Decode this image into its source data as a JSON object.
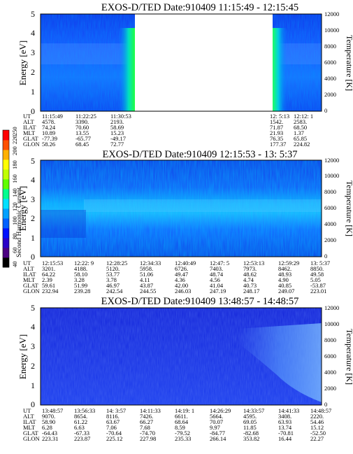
{
  "chart_data": [
    {
      "type": "heatmap",
      "title": "EXOS-D/TED   Date:910409   11:15:49 -  12:15:45",
      "ylabel": "Energy [eV]",
      "ylabel_right": "Temperature [K]",
      "ylim": [
        0,
        5
      ],
      "ylim_right": [
        0,
        12000
      ],
      "yticks": [
        "0",
        "1",
        "2",
        "3",
        "4",
        "5"
      ],
      "yticks_right": [
        "0",
        "2000",
        "4000",
        "6000",
        "8000",
        "10000",
        "12000"
      ],
      "data_gap": [
        0.25,
        0.83
      ],
      "footer_labels": [
        "UT",
        "ALT",
        "ILAT",
        "MLT",
        "GLAT",
        "GLON"
      ],
      "footer_columns": [
        [
          "11:15:49",
          "4578.",
          "74.24",
          "10.89",
          "-77.39",
          "58.26"
        ],
        [
          "11:22:25",
          "3390.",
          "70.60",
          "13.55",
          "-65.77",
          "68.45"
        ],
        [
          "11:30:53",
          "2193.",
          "58.69",
          "15.23",
          "-49.17",
          "72.77"
        ],
        [
          "12: 5:13",
          "1542.",
          "71.87",
          "21.93",
          "76.35",
          "177.37"
        ],
        [
          "12:12: 1",
          "2583.",
          "68.50",
          "1.37",
          "65.85",
          "224.82"
        ]
      ]
    },
    {
      "type": "heatmap",
      "title": "EXOS-D/TED   Date:910409   12:15:53 -  13: 5:37",
      "ylabel": "Energy [eV]",
      "ylabel_right": "Temperature [K]",
      "ylim": [
        0,
        5
      ],
      "ylim_right": [
        0,
        12000
      ],
      "yticks": [
        "0",
        "1",
        "2",
        "3",
        "4",
        "5"
      ],
      "yticks_right": [
        "0",
        "2000",
        "4000",
        "6000",
        "8000",
        "10000",
        "12000"
      ],
      "footer_labels": [
        "UT",
        "ALT",
        "ILAT",
        "MLT",
        "GLAT",
        "GLON"
      ],
      "footer_columns": [
        [
          "12:15:53",
          "3201.",
          "64.22",
          "2.39",
          "59.61",
          "232.94"
        ],
        [
          "12:22: 9",
          "4188.",
          "58.10",
          "3.28",
          "51.99",
          "239.28"
        ],
        [
          "12:28:25",
          "5120.",
          "53.77",
          "3.78",
          "46.97",
          "242.54"
        ],
        [
          "12:34:33",
          "5958.",
          "51.06",
          "4.11",
          "43.87",
          "244.55"
        ],
        [
          "12:40:49",
          "6726.",
          "49.47",
          "4.36",
          "42.00",
          "246.03"
        ],
        [
          "12:47: 5",
          "7403.",
          "48.74",
          "4.56",
          "41.04",
          "247.19"
        ],
        [
          "12:53:13",
          "7973.",
          "48.62",
          "4.74",
          "40.73",
          "248.17"
        ],
        [
          "12:59:29",
          "8462.",
          "48.93",
          "4.90",
          "40.85",
          "249.07"
        ],
        [
          "13: 5:37",
          "8850.",
          "49.58",
          "5.05",
          "-53.87",
          "223.01"
        ]
      ]
    },
    {
      "type": "heatmap",
      "title": "EXOS-D/TED   Date:910409   13:48:57 -  14:48:57",
      "ylabel": "Energy [eV]",
      "ylabel_right": "Temperature [K]",
      "ylim": [
        0,
        5
      ],
      "ylim_right": [
        0,
        12000
      ],
      "yticks": [
        "0",
        "1",
        "2",
        "3",
        "4",
        "5"
      ],
      "yticks_right": [
        "0",
        "2000",
        "4000",
        "6000",
        "8000",
        "10000",
        "12000"
      ],
      "footer_labels": [
        "UT",
        "ALT",
        "ILAT",
        "MLT",
        "GLAT",
        "GLON"
      ],
      "footer_columns": [
        [
          "13:48:57",
          "9070.",
          "58.90",
          "6.28",
          "-64.43",
          "223.31"
        ],
        [
          "13:56:33",
          "8654.",
          "61.22",
          "6.63",
          "-67.33",
          "223.87"
        ],
        [
          "14: 3:57",
          "8116.",
          "63.67",
          "7.06",
          "-70.64",
          "225.12"
        ],
        [
          "14:11:33",
          "7426.",
          "66.27",
          "7.68",
          "-74.70",
          "227.98"
        ],
        [
          "14:19: 1",
          "6611.",
          "68.64",
          "8.59",
          "-79.52",
          "235.33"
        ],
        [
          "14:26:29",
          "5664.",
          "70.07",
          "9.97",
          "-84.77",
          "266.14"
        ],
        [
          "14:33:57",
          "4595.",
          "69.05",
          "11.85",
          "-82.68",
          "353.82"
        ],
        [
          "14:41:33",
          "3408.",
          "63.93",
          "13.74",
          "-70.81",
          "16.44"
        ],
        [
          "14:48:57",
          "2220.",
          "54.46",
          "15.12",
          "-52.50",
          "22.27"
        ]
      ]
    }
  ],
  "colorbar": {
    "label": "Second Harmonic Current",
    "ticks": [
      "40",
      "60",
      "80",
      "100",
      "120",
      "140",
      "160",
      "180",
      "200",
      "220",
      "250"
    ],
    "colors": [
      "#000000",
      "#4b0082",
      "#2a00c8",
      "#0010ff",
      "#0060ff",
      "#00a0ff",
      "#00e0ff",
      "#00ff90",
      "#60ff00",
      "#c0ff00",
      "#ffff00",
      "#ffb000",
      "#ff5000",
      "#ff0000"
    ]
  }
}
